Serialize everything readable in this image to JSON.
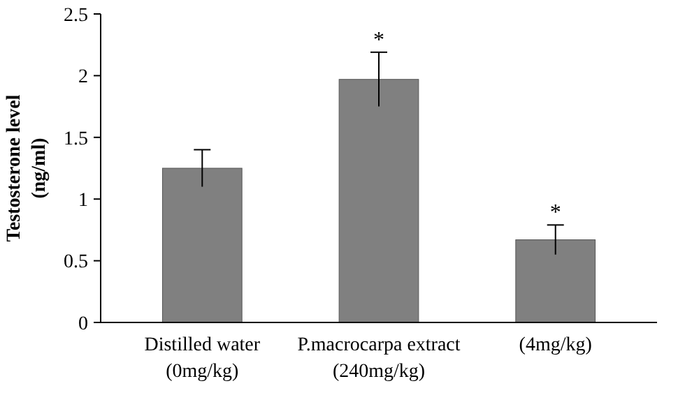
{
  "chart_data": {
    "type": "bar",
    "ylabel": "Testosterone  level (ng/ml)",
    "categories": [
      "Distilled water (0mg/kg)",
      "P.macrocarpa extract (240mg/kg)",
      "(4mg/kg)"
    ],
    "values": [
      1.25,
      1.97,
      0.67
    ],
    "errors": [
      0.15,
      0.22,
      0.12
    ],
    "color": "#808080",
    "ylim": [
      0,
      2.5
    ],
    "yticks": [
      0,
      0.5,
      1,
      1.5,
      2,
      2.5
    ],
    "annotations": [
      {
        "text": "*",
        "x": "P.macrocarpa extract (240mg/kg)",
        "y": 2.19
      },
      {
        "text": "*",
        "x": "(4mg/kg)",
        "y": 0.79
      }
    ]
  }
}
